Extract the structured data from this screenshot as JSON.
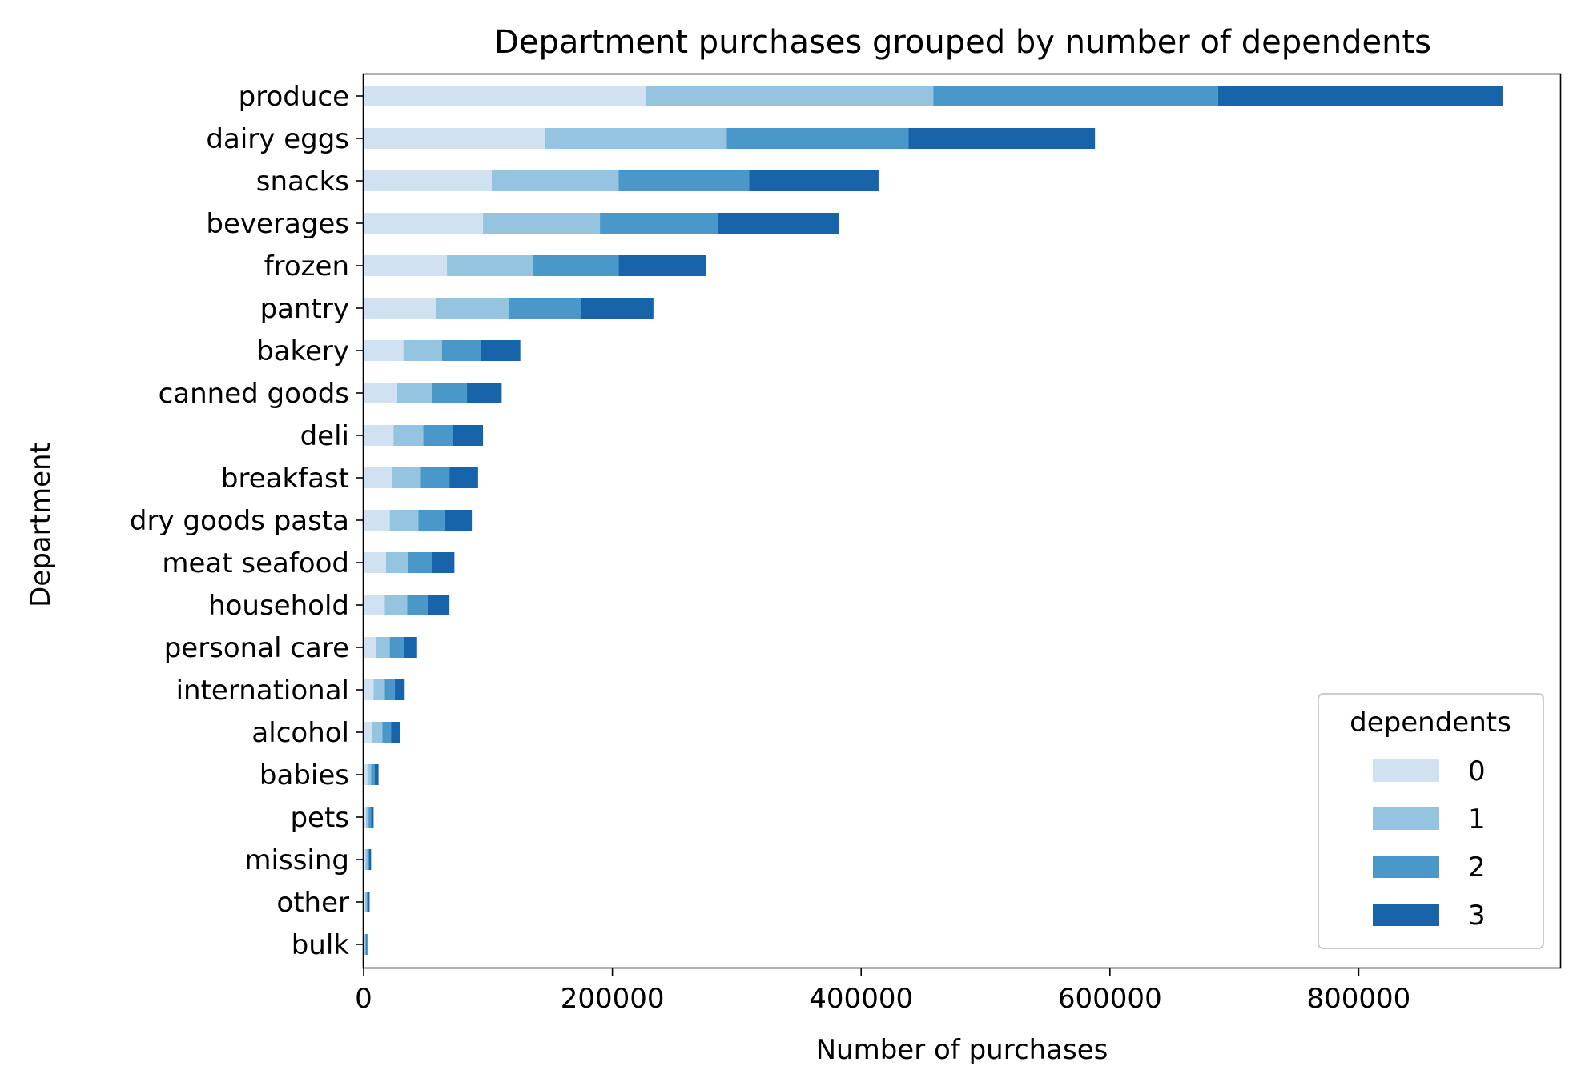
{
  "chart_data": {
    "type": "bar",
    "orientation": "horizontal",
    "stacked": true,
    "title": "Department purchases grouped by number of dependents",
    "xlabel": "Number of purchases",
    "ylabel": "Department",
    "xlim": [
      0,
      962000
    ],
    "xticks": [
      0,
      200000,
      400000,
      600000,
      800000
    ],
    "grid": false,
    "legend": {
      "title": "dependents",
      "placement": "lower-right"
    },
    "categories": [
      "produce",
      "dairy eggs",
      "snacks",
      "beverages",
      "frozen",
      "pantry",
      "bakery",
      "canned goods",
      "deli",
      "breakfast",
      "dry goods pasta",
      "meat seafood",
      "household",
      "personal care",
      "international",
      "alcohol",
      "babies",
      "pets",
      "missing",
      "other",
      "bulk"
    ],
    "series": [
      {
        "name": "0",
        "color": "#d0e1f2",
        "values": [
          227000,
          146000,
          103000,
          96000,
          67000,
          58000,
          32000,
          27000,
          24000,
          23000,
          21000,
          18000,
          17000,
          10000,
          8000,
          7000,
          3000,
          2000,
          1500,
          1200,
          800
        ]
      },
      {
        "name": "1",
        "color": "#94c4df",
        "values": [
          231000,
          146000,
          102000,
          94000,
          69000,
          59000,
          31000,
          28000,
          24000,
          23000,
          23000,
          18000,
          18000,
          11000,
          9000,
          8000,
          3000,
          2000,
          1500,
          1200,
          700
        ]
      },
      {
        "name": "2",
        "color": "#4a98c9",
        "values": [
          229000,
          146000,
          105000,
          95000,
          69000,
          58000,
          31000,
          28000,
          24000,
          23000,
          21000,
          19000,
          17000,
          11000,
          8000,
          7000,
          3000,
          2000,
          1500,
          1200,
          700
        ]
      },
      {
        "name": "3",
        "color": "#1764ab",
        "values": [
          229000,
          150000,
          104000,
          97000,
          70000,
          58000,
          32000,
          28000,
          24000,
          23000,
          22000,
          18000,
          17000,
          11000,
          8000,
          7000,
          3000,
          2000,
          1500,
          1200,
          800
        ]
      }
    ]
  }
}
